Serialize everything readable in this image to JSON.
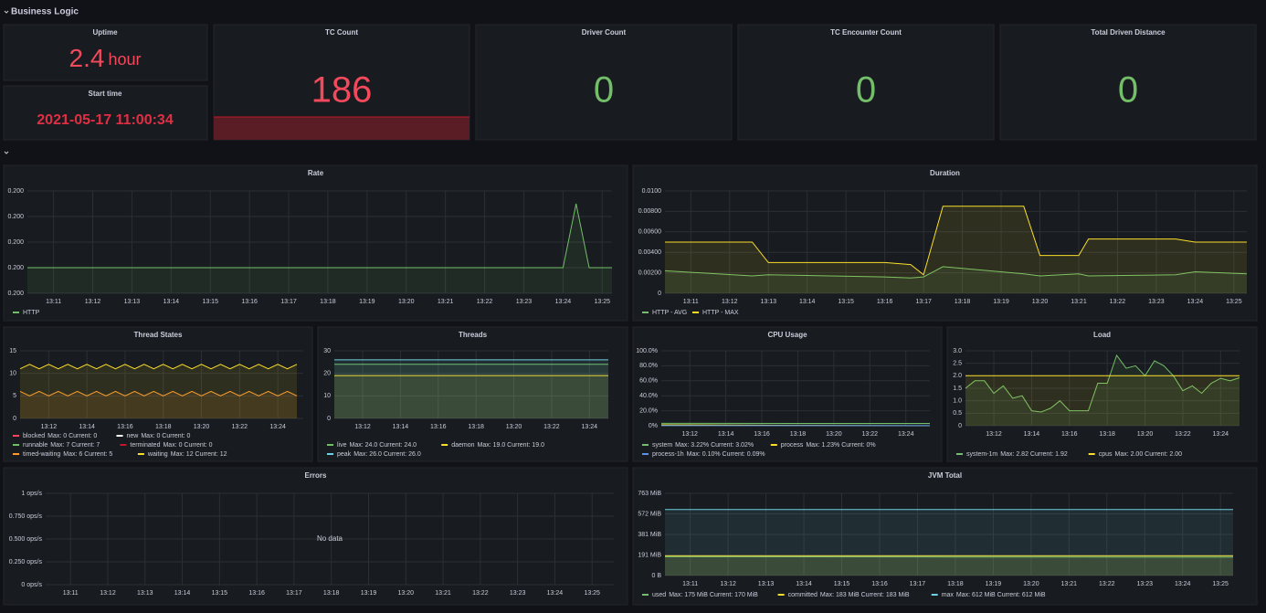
{
  "row_title": "Business Logic",
  "stats": [
    {
      "title": "Uptime",
      "value": 2.4,
      "unit": "hour"
    },
    {
      "title": "Start time",
      "value": "2021-05-17 11:00:34"
    },
    {
      "title": "TC Count",
      "value": 186
    },
    {
      "title": "Driver Count",
      "value": 0
    },
    {
      "title": "TC Encounter Count",
      "value": 0
    },
    {
      "title": "Total Driven Distance",
      "value": 0
    }
  ],
  "panels": [
    {
      "type": "line",
      "title": "Rate",
      "xlim": [
        "13:10:20",
        "13:25:15"
      ],
      "xticks": [
        "13:11",
        "13:12",
        "13:13",
        "13:14",
        "13:15",
        "13:16",
        "13:17",
        "13:18",
        "13:19",
        "13:20",
        "13:21",
        "13:22",
        "13:23",
        "13:24",
        "13:25"
      ],
      "ylim": [
        0.1996,
        0.2004
      ],
      "yticks": [
        {
          "value": 0.1996,
          "label": "0.200"
        },
        {
          "value": 0.1998,
          "label": "0.200"
        },
        {
          "value": 0.2,
          "label": "0.200"
        },
        {
          "value": 0.2002,
          "label": "0.200"
        },
        {
          "value": 0.2004,
          "label": "0.200"
        }
      ],
      "x": [
        "13:10:20",
        "13:24:00",
        "13:24:20",
        "13:24:40",
        "13:25:15"
      ],
      "series": [
        {
          "name": "HTTP",
          "color": "#73bf69",
          "values": [
            0.1998,
            0.1998,
            0.2003,
            0.1998,
            0.1998
          ]
        }
      ]
    },
    {
      "type": "line",
      "title": "Duration",
      "xlim": [
        "13:10:20",
        "13:25:20"
      ],
      "xticks": [
        "13:11",
        "13:12",
        "13:13",
        "13:14",
        "13:15",
        "13:16",
        "13:17",
        "13:18",
        "13:19",
        "13:20",
        "13:21",
        "13:22",
        "13:23",
        "13:24",
        "13:25"
      ],
      "ylim": [
        0,
        0.01
      ],
      "yticks": [
        0,
        {
          "value": 0.002,
          "label": "0.00200"
        },
        {
          "value": 0.004,
          "label": "0.00400"
        },
        {
          "value": 0.006,
          "label": "0.00600"
        },
        {
          "value": 0.008,
          "label": "0.00800"
        },
        {
          "value": 0.01,
          "label": "0.0100"
        }
      ],
      "x": [
        "13:10:20",
        "13:12:35",
        "13:13:00",
        "13:16:00",
        "13:16:40",
        "13:17:00",
        "13:17:30",
        "13:19:35",
        "13:20:00",
        "13:21:00",
        "13:21:15",
        "13:23:30",
        "13:24:00",
        "13:25:20"
      ],
      "series": [
        {
          "name": "HTTP - AVG",
          "color": "#73bf69",
          "values": [
            0.0022,
            0.0017,
            0.0018,
            0.0016,
            0.0015,
            0.0016,
            0.0026,
            0.0019,
            0.0017,
            0.0019,
            0.0017,
            0.0018,
            0.0021,
            0.0019
          ]
        },
        {
          "name": "HTTP - MAX",
          "color": "#fade2a",
          "values": [
            0.005,
            0.005,
            0.003,
            0.003,
            0.0028,
            0.0018,
            0.0085,
            0.0085,
            0.0037,
            0.0037,
            0.0053,
            0.0053,
            0.005,
            0.005
          ]
        }
      ]
    },
    {
      "type": "line",
      "title": "Thread States",
      "xlim": [
        "13:10:30",
        "13:25:20"
      ],
      "xticks": [
        "13:12",
        "13:14",
        "13:16",
        "13:18",
        "13:20",
        "13:22",
        "13:24"
      ],
      "ylim": [
        0,
        15
      ],
      "yticks": [
        0,
        5,
        10,
        15
      ],
      "x": [
        "13:10:30",
        "13:11:00",
        "13:11:30",
        "13:12:00",
        "13:12:30",
        "13:13:00",
        "13:13:30",
        "13:14:00",
        "13:14:30",
        "13:15:00",
        "13:15:30",
        "13:16:00",
        "13:16:30",
        "13:17:00",
        "13:17:30",
        "13:18:00",
        "13:18:30",
        "13:19:00",
        "13:19:30",
        "13:20:00",
        "13:20:30",
        "13:21:00",
        "13:21:30",
        "13:22:00",
        "13:22:30",
        "13:23:00",
        "13:23:30",
        "13:24:00",
        "13:24:30",
        "13:25:00"
      ],
      "series": [
        {
          "name": "blocked",
          "color": "#f2495c",
          "legend": "Max: 0 Current: 0"
        },
        {
          "name": "new",
          "color": "#ffffff",
          "legend": "Max: 0 Current: 0"
        },
        {
          "name": "runnable",
          "color": "#73bf69",
          "legend": "Max: 7 Current: 7"
        },
        {
          "name": "terminated",
          "color": "#c4162a",
          "legend": "Max: 0 Current: 0"
        },
        {
          "name": "timed-waiting",
          "color": "#ff9830",
          "legend": "Max: 6 Current: 5",
          "values": [
            6,
            5,
            6,
            5,
            6,
            5,
            6,
            5,
            6,
            5,
            6,
            5,
            6,
            5,
            6,
            5,
            6,
            5,
            6,
            5,
            6,
            5,
            6,
            5,
            6,
            5,
            6,
            5,
            6,
            5
          ]
        },
        {
          "name": "waiting",
          "color": "#fade2a",
          "legend": "Max: 12 Current: 12",
          "values": [
            11,
            12,
            11,
            12,
            11,
            12,
            11,
            12,
            11,
            12,
            11,
            12,
            11,
            12,
            11,
            12,
            11,
            12,
            11,
            12,
            11,
            12,
            11,
            12,
            11,
            12,
            11,
            12,
            11,
            12
          ]
        }
      ]
    },
    {
      "type": "line",
      "title": "Threads",
      "xlim": [
        "13:10:30",
        "13:25:00"
      ],
      "xticks": [
        "13:12",
        "13:14",
        "13:16",
        "13:18",
        "13:20",
        "13:22",
        "13:24"
      ],
      "ylim": [
        0,
        30
      ],
      "yticks": [
        0,
        10,
        20,
        30
      ],
      "x": [
        "13:10:30",
        "13:25:00"
      ],
      "series": [
        {
          "name": "live",
          "color": "#73bf69",
          "legend": "Max: 24.0 Current: 24.0",
          "values": [
            24,
            24
          ]
        },
        {
          "name": "daemon",
          "color": "#fade2a",
          "legend": "Max: 19.0 Current: 19.0",
          "values": [
            19,
            19
          ]
        },
        {
          "name": "peak",
          "color": "#6ed0e0",
          "legend": "Max: 26.0 Current: 26.0",
          "values": [
            26,
            26
          ]
        }
      ]
    },
    {
      "type": "line",
      "title": "CPU Usage",
      "xlim": [
        "13:10:25",
        "13:25:20"
      ],
      "xticks": [
        "13:12",
        "13:14",
        "13:16",
        "13:18",
        "13:20",
        "13:22",
        "13:24"
      ],
      "ylim": [
        0,
        100
      ],
      "yticks": [
        {
          "value": 0,
          "label": "0%"
        },
        {
          "value": 20,
          "label": "20.0%"
        },
        {
          "value": 40,
          "label": "40.0%"
        },
        {
          "value": 60,
          "label": "60.0%"
        },
        {
          "value": 80,
          "label": "80.0%"
        },
        {
          "value": 100,
          "label": "100.0%"
        }
      ],
      "x": [
        "13:10:25",
        "13:18:00",
        "13:25:20"
      ],
      "series": [
        {
          "name": "system",
          "color": "#73bf69",
          "legend": "Max: 3.22% Current: 3.02%",
          "values": [
            3.22,
            3.1,
            3.02
          ]
        },
        {
          "name": "process",
          "color": "#fade2a",
          "legend": "Max: 1.23% Current: 0%",
          "values": [
            1.23,
            0.5,
            0
          ]
        },
        {
          "name": "process-1h",
          "color": "#5794f2",
          "legend": "Max: 0.10% Current: 0.09%",
          "values": [
            0.1,
            0.09,
            0.09
          ]
        }
      ]
    },
    {
      "type": "line",
      "title": "Load",
      "xlim": [
        "13:10:30",
        "13:25:00"
      ],
      "xticks": [
        "13:12",
        "13:14",
        "13:16",
        "13:18",
        "13:20",
        "13:22",
        "13:24"
      ],
      "ylim": [
        0,
        3
      ],
      "yticks": [
        0,
        0.5,
        {
          "value": 1,
          "label": "1.0"
        },
        1.5,
        {
          "value": 2,
          "label": "2.0"
        },
        2.5,
        {
          "value": 3,
          "label": "3.0"
        }
      ],
      "x": [
        "13:10:30",
        "13:11:00",
        "13:11:30",
        "13:12:00",
        "13:12:30",
        "13:13:00",
        "13:13:30",
        "13:14:00",
        "13:14:30",
        "13:15:00",
        "13:15:30",
        "13:16:00",
        "13:16:30",
        "13:17:00",
        "13:17:30",
        "13:18:00",
        "13:18:30",
        "13:19:00",
        "13:19:30",
        "13:20:00",
        "13:20:30",
        "13:21:00",
        "13:21:30",
        "13:22:00",
        "13:22:30",
        "13:23:00",
        "13:23:30",
        "13:24:00",
        "13:24:30",
        "13:25:00"
      ],
      "series": [
        {
          "name": "system-1m",
          "color": "#73bf69",
          "legend": "Max: 2.82 Current: 1.92",
          "values": [
            1.5,
            1.8,
            1.8,
            1.3,
            1.6,
            1.1,
            1.2,
            0.6,
            0.55,
            0.7,
            1.0,
            0.6,
            0.6,
            0.6,
            1.7,
            1.7,
            2.82,
            2.3,
            2.4,
            2.0,
            2.6,
            2.4,
            2.0,
            1.4,
            1.6,
            1.3,
            1.7,
            1.9,
            1.8,
            1.92
          ]
        },
        {
          "name": "cpus",
          "color": "#fade2a",
          "legend": "Max: 2.00 Current: 2.00",
          "values": [
            2,
            2,
            2,
            2,
            2,
            2,
            2,
            2,
            2,
            2,
            2,
            2,
            2,
            2,
            2,
            2,
            2,
            2,
            2,
            2,
            2,
            2,
            2,
            2,
            2,
            2,
            2,
            2,
            2,
            2
          ]
        }
      ]
    },
    {
      "type": "line",
      "title": "Errors",
      "xlim": [
        "13:10:20",
        "13:25:35"
      ],
      "xticks": [
        "13:11",
        "13:12",
        "13:13",
        "13:14",
        "13:15",
        "13:16",
        "13:17",
        "13:18",
        "13:19",
        "13:20",
        "13:21",
        "13:22",
        "13:23",
        "13:24",
        "13:25"
      ],
      "ylim": [
        0,
        1
      ],
      "yticks": [
        {
          "value": 0,
          "label": "0 ops/s"
        },
        {
          "value": 0.25,
          "label": "0.250 ops/s"
        },
        {
          "value": 0.5,
          "label": "0.500 ops/s"
        },
        {
          "value": 0.75,
          "label": "0.750 ops/s"
        },
        {
          "value": 1,
          "label": "1 ops/s"
        }
      ],
      "no_data": "No data",
      "series": []
    },
    {
      "type": "line",
      "title": "JVM Total",
      "xlim": [
        "13:10:20",
        "13:25:20"
      ],
      "xticks": [
        "13:11",
        "13:12",
        "13:13",
        "13:14",
        "13:15",
        "13:16",
        "13:17",
        "13:18",
        "13:19",
        "13:20",
        "13:21",
        "13:22",
        "13:23",
        "13:24",
        "13:25"
      ],
      "ylim": [
        0,
        763
      ],
      "yticks": [
        {
          "value": 0,
          "label": "0 B"
        },
        {
          "value": 191,
          "label": "191 MiB"
        },
        {
          "value": 381,
          "label": "381 MiB"
        },
        {
          "value": 572,
          "label": "572 MiB"
        },
        {
          "value": 763,
          "label": "763 MiB"
        }
      ],
      "x": [
        "13:10:20",
        "13:18:00",
        "13:25:20"
      ],
      "series": [
        {
          "name": "used",
          "color": "#73bf69",
          "legend": "Max: 175 MiB Current: 170 MiB",
          "values": [
            175,
            172,
            170
          ]
        },
        {
          "name": "committed",
          "color": "#fade2a",
          "legend": "Max: 183 MiB Current: 183 MiB",
          "values": [
            183,
            183,
            183
          ]
        },
        {
          "name": "max",
          "color": "#6ed0e0",
          "legend": "Max: 612 MiB Current: 612 MiB",
          "values": [
            612,
            612,
            612
          ]
        }
      ]
    }
  ]
}
